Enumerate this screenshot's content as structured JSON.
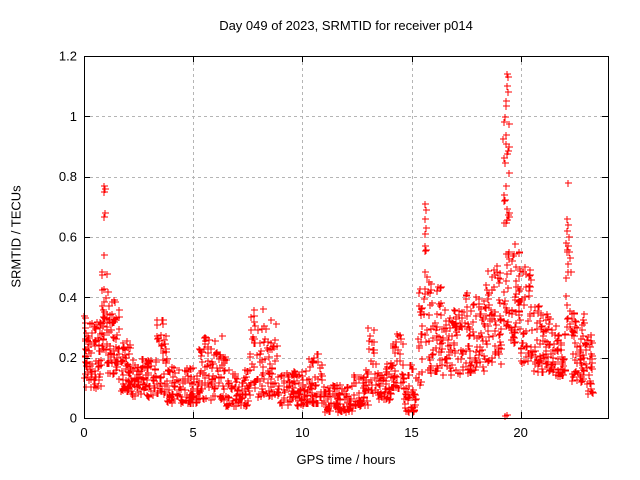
{
  "page": {
    "background": "#ffffff"
  },
  "chart_data": {
    "type": "scatter",
    "title": "Day 049 of 2023, SRMTID for receiver p014",
    "xlabel": "GPS time / hours",
    "ylabel": "SRMTID / TECUs",
    "xlim": [
      0,
      24
    ],
    "ylim": [
      0,
      1.2
    ],
    "xticks": [
      0,
      5,
      10,
      15,
      20
    ],
    "xtick_labels": [
      "0",
      "5",
      "10",
      "15",
      "20"
    ],
    "yticks": [
      0,
      0.2,
      0.4,
      0.6,
      0.8,
      1.0,
      1.2
    ],
    "ytick_labels": [
      "0",
      "0.2",
      "0.4",
      "0.6",
      "0.8",
      "1",
      "1.2"
    ],
    "grid": {
      "show": true,
      "color": "#b5b5b5",
      "dash": "3,3"
    },
    "frame_color": "#000000",
    "marker": {
      "shape": "plus",
      "color": "#ff0000",
      "size": 7
    },
    "point_clusters": [
      {
        "x0": 0.0,
        "x1": 0.15,
        "n": 25,
        "lo": 0.1,
        "hi": 0.38
      },
      {
        "x0": 0.15,
        "x1": 0.8,
        "n": 60,
        "lo": 0.1,
        "hi": 0.32
      },
      {
        "x0": 0.8,
        "x1": 1.05,
        "n": 30,
        "lo": 0.22,
        "hi": 0.5
      },
      {
        "x0": 1.05,
        "x1": 1.6,
        "n": 55,
        "lo": 0.14,
        "hi": 0.42
      },
      {
        "x0": 1.6,
        "x1": 2.2,
        "n": 55,
        "lo": 0.09,
        "hi": 0.26
      },
      {
        "x0": 2.2,
        "x1": 3.3,
        "n": 80,
        "lo": 0.07,
        "hi": 0.2
      },
      {
        "x0": 3.3,
        "x1": 3.8,
        "n": 40,
        "lo": 0.08,
        "hi": 0.33
      },
      {
        "x0": 3.8,
        "x1": 5.2,
        "n": 90,
        "lo": 0.05,
        "hi": 0.17
      },
      {
        "x0": 5.2,
        "x1": 5.85,
        "n": 45,
        "lo": 0.06,
        "hi": 0.27
      },
      {
        "x0": 5.85,
        "x1": 6.5,
        "n": 45,
        "lo": 0.06,
        "hi": 0.3
      },
      {
        "x0": 6.5,
        "x1": 7.6,
        "n": 70,
        "lo": 0.04,
        "hi": 0.16
      },
      {
        "x0": 7.6,
        "x1": 8.25,
        "n": 45,
        "lo": 0.07,
        "hi": 0.37
      },
      {
        "x0": 8.25,
        "x1": 8.85,
        "n": 40,
        "lo": 0.07,
        "hi": 0.33
      },
      {
        "x0": 8.85,
        "x1": 10.3,
        "n": 90,
        "lo": 0.04,
        "hi": 0.16
      },
      {
        "x0": 10.3,
        "x1": 11.0,
        "n": 45,
        "lo": 0.05,
        "hi": 0.22
      },
      {
        "x0": 11.0,
        "x1": 12.3,
        "n": 85,
        "lo": 0.02,
        "hi": 0.11
      },
      {
        "x0": 12.3,
        "x1": 13.0,
        "n": 50,
        "lo": 0.04,
        "hi": 0.16
      },
      {
        "x0": 13.0,
        "x1": 13.35,
        "n": 25,
        "lo": 0.08,
        "hi": 0.3
      },
      {
        "x0": 13.35,
        "x1": 14.1,
        "n": 50,
        "lo": 0.06,
        "hi": 0.2
      },
      {
        "x0": 14.1,
        "x1": 14.65,
        "n": 40,
        "lo": 0.1,
        "hi": 0.28
      },
      {
        "x0": 14.65,
        "x1": 15.25,
        "n": 40,
        "lo": 0.02,
        "hi": 0.18
      },
      {
        "x0": 15.3,
        "x1": 15.5,
        "n": 20,
        "lo": 0.1,
        "hi": 0.44
      },
      {
        "x0": 15.55,
        "x1": 15.75,
        "n": 12,
        "lo": 0.25,
        "hi": 0.6
      },
      {
        "x0": 15.75,
        "x1": 16.35,
        "n": 45,
        "lo": 0.15,
        "hi": 0.46
      },
      {
        "x0": 16.35,
        "x1": 17.4,
        "n": 75,
        "lo": 0.14,
        "hi": 0.36
      },
      {
        "x0": 17.4,
        "x1": 18.4,
        "n": 75,
        "lo": 0.15,
        "hi": 0.42
      },
      {
        "x0": 18.4,
        "x1": 19.15,
        "n": 60,
        "lo": 0.18,
        "hi": 0.52
      },
      {
        "x0": 19.2,
        "x1": 19.5,
        "n": 45,
        "lo": 0.3,
        "hi": 1.05
      },
      {
        "x0": 19.5,
        "x1": 20.0,
        "n": 45,
        "lo": 0.25,
        "hi": 0.58
      },
      {
        "x0": 20.0,
        "x1": 20.5,
        "n": 40,
        "lo": 0.18,
        "hi": 0.52
      },
      {
        "x0": 20.5,
        "x1": 21.6,
        "n": 80,
        "lo": 0.15,
        "hi": 0.38
      },
      {
        "x0": 21.6,
        "x1": 22.05,
        "n": 35,
        "lo": 0.14,
        "hi": 0.32
      },
      {
        "x0": 22.05,
        "x1": 22.3,
        "n": 16,
        "lo": 0.3,
        "hi": 0.66
      },
      {
        "x0": 22.3,
        "x1": 22.95,
        "n": 55,
        "lo": 0.12,
        "hi": 0.35
      },
      {
        "x0": 22.95,
        "x1": 23.3,
        "n": 30,
        "lo": 0.08,
        "hi": 0.28
      }
    ],
    "outlier_points": [
      [
        0.9,
        0.75
      ],
      [
        0.92,
        0.77
      ],
      [
        0.95,
        0.76
      ],
      [
        0.91,
        0.665
      ],
      [
        0.94,
        0.68
      ],
      [
        0.9,
        0.54
      ],
      [
        15.6,
        0.57
      ],
      [
        15.6,
        0.66
      ],
      [
        15.62,
        0.71
      ],
      [
        15.63,
        0.61
      ],
      [
        15.65,
        0.69
      ],
      [
        15.68,
        0.63
      ],
      [
        19.35,
        1.05
      ],
      [
        19.37,
        1.1
      ],
      [
        19.38,
        1.14
      ],
      [
        19.4,
        1.13
      ],
      [
        19.42,
        1.08
      ],
      [
        19.3,
        0.005
      ],
      [
        19.36,
        0.01
      ],
      [
        15.05,
        0.02
      ],
      [
        15.1,
        0.035
      ],
      [
        22.1,
        0.55
      ],
      [
        22.1,
        0.66
      ],
      [
        22.12,
        0.62
      ],
      [
        22.15,
        0.78
      ],
      [
        22.15,
        0.57
      ],
      [
        22.18,
        0.64
      ],
      [
        22.2,
        0.6
      ]
    ]
  }
}
